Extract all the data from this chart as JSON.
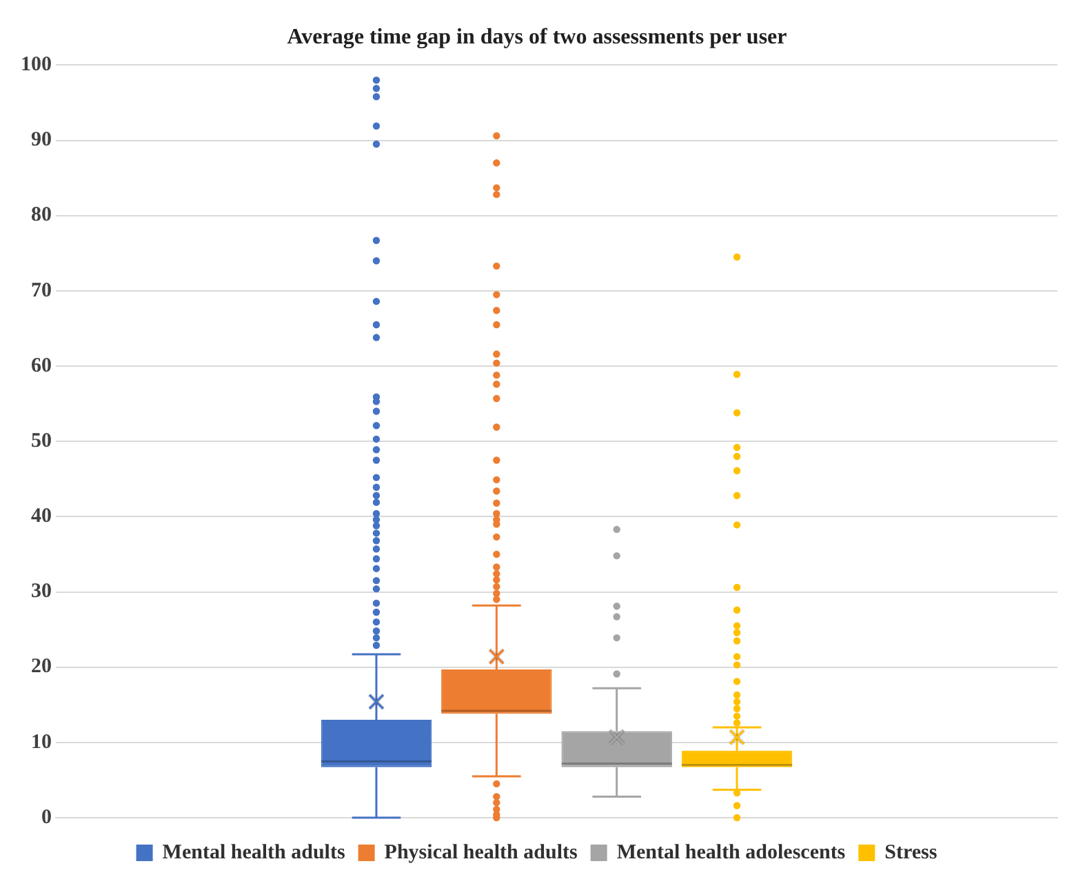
{
  "chart_data": {
    "type": "box",
    "title": "Average time gap in days of two assessments per user",
    "categories": [
      null
    ],
    "series": [
      {
        "name": "Mental health adults",
        "color": "#4472c4",
        "boxes": [
          {
            "low": 0,
            "q1": 6.7,
            "median": 7.5,
            "q3": 13.0,
            "high": 21.7,
            "mean": 15.4,
            "outliers": [
              98.0,
              96.9,
              95.8,
              91.9,
              89.5,
              76.7,
              74.0,
              68.6,
              65.5,
              63.8,
              55.9,
              55.3,
              54.0,
              52.1,
              50.3,
              48.9,
              47.5,
              45.2,
              43.9,
              42.8,
              41.9,
              40.4,
              39.6,
              38.8,
              37.8,
              36.8,
              35.7,
              34.4,
              33.1,
              31.5,
              30.4,
              28.5,
              27.3,
              26.0,
              24.8,
              23.9,
              22.9
            ]
          }
        ]
      },
      {
        "name": "Physical health adults",
        "color": "#ed7d31",
        "boxes": [
          {
            "low": 5.5,
            "q1": 13.8,
            "median": 14.2,
            "q3": 19.7,
            "high": 28.2,
            "mean": 21.4,
            "outliers": [
              90.6,
              87.0,
              83.7,
              82.8,
              73.3,
              69.5,
              67.4,
              65.5,
              61.6,
              60.4,
              58.8,
              57.6,
              55.7,
              51.9,
              47.5,
              44.9,
              43.4,
              41.8,
              40.4,
              39.6,
              39.0,
              37.3,
              35.0,
              33.3,
              32.4,
              31.6,
              30.7,
              29.8,
              29.0,
              4.5,
              2.8,
              2.0,
              1.1,
              0.4,
              0
            ]
          }
        ]
      },
      {
        "name": "Mental health adolescents",
        "color": "#a5a5a5",
        "boxes": [
          {
            "low": 2.8,
            "q1": 6.7,
            "median": 7.2,
            "q3": 11.5,
            "high": 17.2,
            "mean": 10.7,
            "outliers": [
              38.3,
              34.8,
              28.1,
              26.7,
              23.9,
              19.1
            ]
          }
        ]
      },
      {
        "name": "Stress",
        "color": "#ffc000",
        "boxes": [
          {
            "low": 3.7,
            "q1": 6.7,
            "median": 7.0,
            "q3": 8.9,
            "high": 12.0,
            "mean": 10.7,
            "outliers": [
              74.5,
              58.9,
              53.8,
              49.2,
              48.0,
              46.1,
              42.8,
              38.9,
              30.6,
              27.6,
              25.5,
              24.6,
              23.5,
              21.4,
              20.3,
              18.1,
              16.3,
              15.4,
              14.5,
              13.5,
              12.6,
              3.3,
              1.6,
              0
            ]
          }
        ]
      }
    ],
    "ylim": [
      0,
      100
    ],
    "yticks": [
      0,
      10,
      20,
      30,
      40,
      50,
      60,
      70,
      80,
      90,
      100
    ],
    "grid": "y",
    "legend": "bottom",
    "marker": "circle"
  }
}
